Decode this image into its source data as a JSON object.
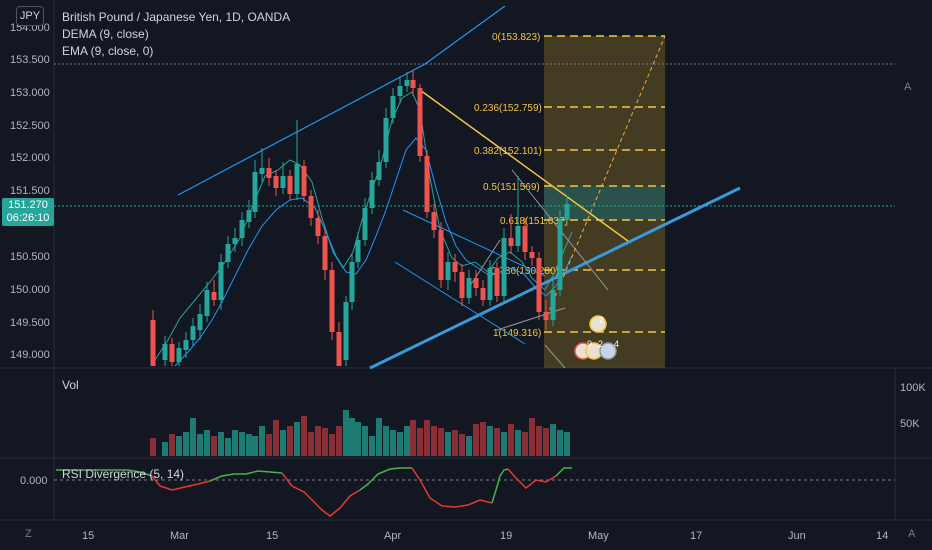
{
  "header": {
    "symbol_badge": "JPY",
    "title": "British Pound / Japanese Yen, 1D, OANDA",
    "indicator_dema": "DEMA (9, close)",
    "indicator_ema": "EMA (9, close, 0)"
  },
  "price_axis": {
    "labels": [
      "154.000",
      "153.500",
      "153.000",
      "152.500",
      "152.000",
      "151.500",
      "150.500",
      "150.000",
      "149.500",
      "149.000"
    ],
    "current_price": "151.270",
    "countdown": "06:26:10"
  },
  "fib_levels": [
    {
      "label": "0(153.823)"
    },
    {
      "label": "0.236(152.759)"
    },
    {
      "label": "0.382(152.101)"
    },
    {
      "label": "0.5(151.569)"
    },
    {
      "label": "0.618(151.037)"
    },
    {
      "label": "0.786(150.280)"
    },
    {
      "label": "1(149.316)"
    }
  ],
  "volume_pane": {
    "title": "Vol",
    "axis_labels": [
      "100K",
      "50K"
    ]
  },
  "rsi_pane": {
    "title": "RSI Divergence (5, 14)",
    "axis_label": "0.000"
  },
  "time_axis": {
    "labels": [
      "15",
      "Mar",
      "15",
      "Apr",
      "19",
      "May",
      "17",
      "Jun",
      "14"
    ]
  },
  "corner_controls": {
    "bottom_left": "Z",
    "bottom_right": "A",
    "top_right": "A"
  },
  "event_markers": [
    "2",
    "9",
    "2",
    "4"
  ],
  "colors": {
    "background": "#131722",
    "up": "#26a69a",
    "down": "#ef5350",
    "up_volume": "#1e7b73",
    "down_volume": "#8a2e35",
    "trendline_blue": "#2196f3",
    "fib_gold": "#f5c542",
    "fib_fill": "#6b5a22",
    "rsi_green": "#4caf50",
    "rsi_red": "#e53935",
    "text": "#d1d4dc"
  }
}
